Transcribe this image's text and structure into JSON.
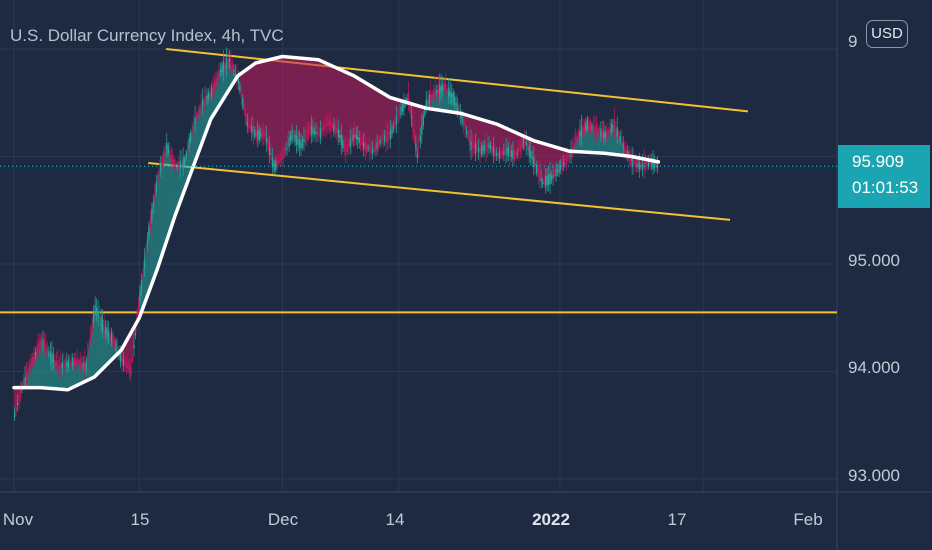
{
  "chart_data": {
    "type": "candlestick",
    "title": "U.S. Dollar Currency Index, 4h, TVC",
    "currency": "USD",
    "y_ticks": [
      "93.000",
      "94.000",
      "95.000"
    ],
    "y_tick_values": [
      93.0,
      94.0,
      95.0
    ],
    "y_top_partial": "9",
    "x_ticks": [
      "Nov",
      "15",
      "Dec",
      "14",
      "2022",
      "17",
      "Feb"
    ],
    "ylim": [
      92.86,
      97.38
    ],
    "last_price": "95.909",
    "last_price_value": 95.909,
    "countdown": "01:01:53",
    "horizontal_level": 94.55,
    "channel_upper": [
      {
        "date": "2021-11-18",
        "value": 97.0
      },
      {
        "date": "2022-01-22",
        "value": 96.42
      }
    ],
    "channel_lower": [
      {
        "date": "2021-11-16",
        "value": 95.94
      },
      {
        "date": "2022-01-20",
        "value": 95.41
      }
    ],
    "price_path": [
      {
        "date": "2021-11-01",
        "value": 93.6
      },
      {
        "date": "2021-11-02",
        "value": 93.9
      },
      {
        "date": "2021-11-03",
        "value": 94.1
      },
      {
        "date": "2021-11-04",
        "value": 94.3
      },
      {
        "date": "2021-11-05",
        "value": 94.15
      },
      {
        "date": "2021-11-06",
        "value": 94.05
      },
      {
        "date": "2021-11-08",
        "value": 94.1
      },
      {
        "date": "2021-11-09",
        "value": 94.05
      },
      {
        "date": "2021-11-10",
        "value": 94.6
      },
      {
        "date": "2021-11-11",
        "value": 94.4
      },
      {
        "date": "2021-11-12",
        "value": 94.3
      },
      {
        "date": "2021-11-13",
        "value": 94.1
      },
      {
        "date": "2021-11-14",
        "value": 94.0
      },
      {
        "date": "2021-11-15",
        "value": 94.7
      },
      {
        "date": "2021-11-16",
        "value": 95.3
      },
      {
        "date": "2021-11-17",
        "value": 95.8
      },
      {
        "date": "2021-11-18",
        "value": 96.1
      },
      {
        "date": "2021-11-19",
        "value": 95.9
      },
      {
        "date": "2021-11-20",
        "value": 95.95
      },
      {
        "date": "2021-11-21",
        "value": 96.3
      },
      {
        "date": "2021-11-22",
        "value": 96.5
      },
      {
        "date": "2021-11-23",
        "value": 96.6
      },
      {
        "date": "2021-11-24",
        "value": 96.8
      },
      {
        "date": "2021-11-25",
        "value": 96.9
      },
      {
        "date": "2021-11-26",
        "value": 96.7
      },
      {
        "date": "2021-11-27",
        "value": 96.3
      },
      {
        "date": "2021-11-28",
        "value": 96.2
      },
      {
        "date": "2021-11-29",
        "value": 96.2
      },
      {
        "date": "2021-11-30",
        "value": 95.9
      },
      {
        "date": "2021-12-01",
        "value": 96.0
      },
      {
        "date": "2021-12-02",
        "value": 96.2
      },
      {
        "date": "2021-12-03",
        "value": 96.1
      },
      {
        "date": "2021-12-04",
        "value": 96.25
      },
      {
        "date": "2021-12-05",
        "value": 96.2
      },
      {
        "date": "2021-12-06",
        "value": 96.3
      },
      {
        "date": "2021-12-07",
        "value": 96.25
      },
      {
        "date": "2021-12-08",
        "value": 96.05
      },
      {
        "date": "2021-12-09",
        "value": 96.2
      },
      {
        "date": "2021-12-10",
        "value": 96.1
      },
      {
        "date": "2021-12-11",
        "value": 96.05
      },
      {
        "date": "2021-12-12",
        "value": 96.15
      },
      {
        "date": "2021-12-13",
        "value": 96.2
      },
      {
        "date": "2021-12-14",
        "value": 96.4
      },
      {
        "date": "2021-12-15",
        "value": 96.55
      },
      {
        "date": "2021-12-16",
        "value": 96.0
      },
      {
        "date": "2021-12-17",
        "value": 96.5
      },
      {
        "date": "2021-12-18",
        "value": 96.6
      },
      {
        "date": "2021-12-19",
        "value": 96.65
      },
      {
        "date": "2021-12-20",
        "value": 96.55
      },
      {
        "date": "2021-12-21",
        "value": 96.35
      },
      {
        "date": "2021-12-22",
        "value": 96.1
      },
      {
        "date": "2021-12-23",
        "value": 96.05
      },
      {
        "date": "2021-12-24",
        "value": 96.1
      },
      {
        "date": "2021-12-25",
        "value": 96.0
      },
      {
        "date": "2021-12-26",
        "value": 96.05
      },
      {
        "date": "2021-12-27",
        "value": 96.0
      },
      {
        "date": "2021-12-28",
        "value": 96.15
      },
      {
        "date": "2021-12-29",
        "value": 95.95
      },
      {
        "date": "2021-12-30",
        "value": 95.75
      },
      {
        "date": "2021-12-31",
        "value": 95.8
      },
      {
        "date": "2022-01-01",
        "value": 95.9
      },
      {
        "date": "2022-01-02",
        "value": 96.0
      },
      {
        "date": "2022-01-03",
        "value": 96.2
      },
      {
        "date": "2022-01-04",
        "value": 96.3
      },
      {
        "date": "2022-01-05",
        "value": 96.25
      },
      {
        "date": "2022-01-06",
        "value": 96.2
      },
      {
        "date": "2022-01-07",
        "value": 96.3
      },
      {
        "date": "2022-01-08",
        "value": 96.1
      },
      {
        "date": "2022-01-09",
        "value": 95.95
      },
      {
        "date": "2022-01-10",
        "value": 95.9
      },
      {
        "date": "2022-01-11",
        "value": 95.95
      },
      {
        "date": "2022-01-12",
        "value": 95.91
      }
    ],
    "moving_average": [
      {
        "date": "2021-11-01",
        "value": 93.85
      },
      {
        "date": "2021-11-04",
        "value": 93.85
      },
      {
        "date": "2021-11-07",
        "value": 93.83
      },
      {
        "date": "2021-11-10",
        "value": 93.95
      },
      {
        "date": "2021-11-13",
        "value": 94.2
      },
      {
        "date": "2021-11-15",
        "value": 94.5
      },
      {
        "date": "2021-11-17",
        "value": 94.95
      },
      {
        "date": "2021-11-19",
        "value": 95.45
      },
      {
        "date": "2021-11-21",
        "value": 95.9
      },
      {
        "date": "2021-11-23",
        "value": 96.35
      },
      {
        "date": "2021-11-26",
        "value": 96.75
      },
      {
        "date": "2021-11-28",
        "value": 96.87
      },
      {
        "date": "2021-12-01",
        "value": 96.93
      },
      {
        "date": "2021-12-05",
        "value": 96.9
      },
      {
        "date": "2021-12-09",
        "value": 96.75
      },
      {
        "date": "2021-12-13",
        "value": 96.55
      },
      {
        "date": "2021-12-17",
        "value": 96.45
      },
      {
        "date": "2021-12-21",
        "value": 96.4
      },
      {
        "date": "2021-12-25",
        "value": 96.3
      },
      {
        "date": "2021-12-29",
        "value": 96.15
      },
      {
        "date": "2022-01-02",
        "value": 96.05
      },
      {
        "date": "2022-01-06",
        "value": 96.03
      },
      {
        "date": "2022-01-09",
        "value": 96.0
      },
      {
        "date": "2022-01-12",
        "value": 95.95
      }
    ],
    "grid": true,
    "colors": {
      "background": "#1e2a41",
      "grid": "#2b3852",
      "up": "#26a69a",
      "down": "#c2185b",
      "ma": "#ffffff",
      "level": "#f2c230",
      "price_tag": "#1ba4b1",
      "price_line": "#26c6da"
    }
  }
}
